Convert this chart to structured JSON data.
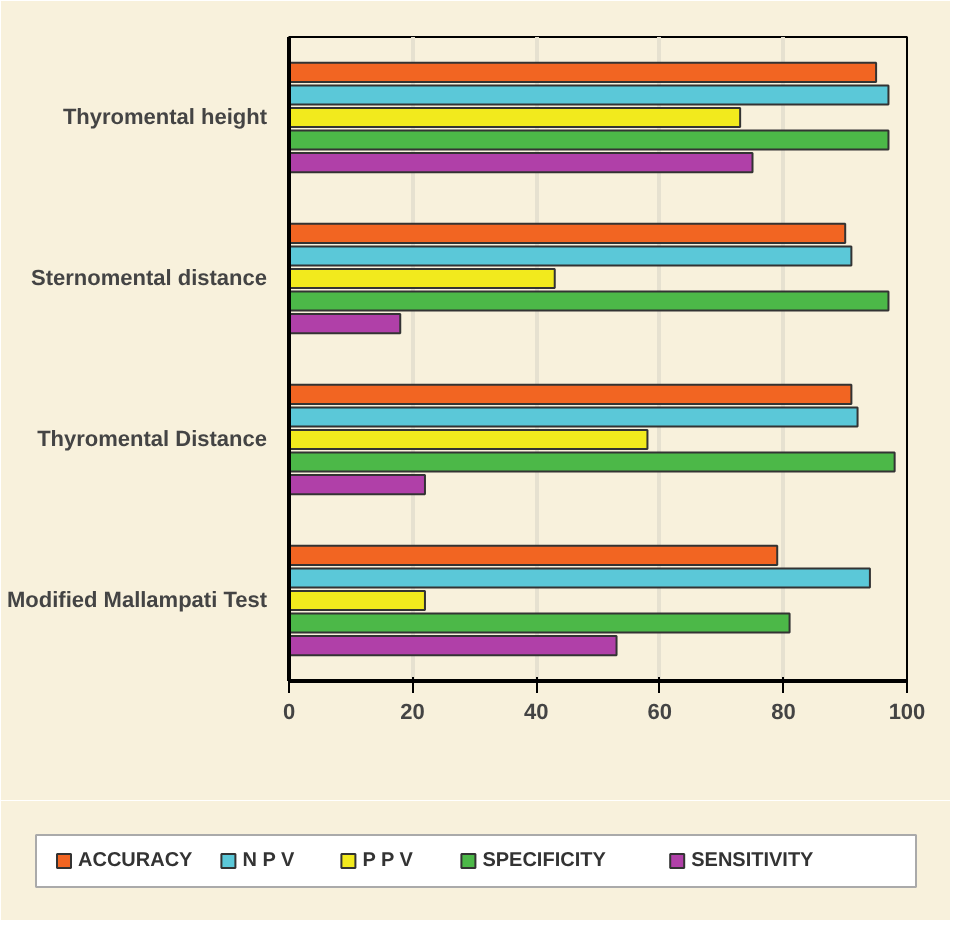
{
  "chart_data": {
    "type": "bar",
    "orientation": "horizontal",
    "categories": [
      "Thyromental height",
      "Sternomental distance",
      "Thyromental Distance",
      "Modified Mallampati Test"
    ],
    "series": [
      {
        "name": "ACCURACY",
        "color": "#f26522",
        "values": [
          95,
          90,
          91,
          79
        ]
      },
      {
        "name": "N P V",
        "color": "#5bc8d8",
        "values": [
          97,
          91,
          92,
          94
        ]
      },
      {
        "name": "P P V",
        "color": "#f2ea1d",
        "values": [
          73,
          43,
          58,
          22
        ]
      },
      {
        "name": "SPECIFICITY",
        "color": "#4cb848",
        "values": [
          97,
          97,
          98,
          81
        ]
      },
      {
        "name": "SENSITIVITY",
        "color": "#b040a8",
        "values": [
          75,
          18,
          22,
          53
        ]
      }
    ],
    "xlim": [
      0,
      100
    ],
    "xticks": [
      0,
      20,
      40,
      60,
      80,
      100
    ],
    "grid": "x",
    "legend": "bottom"
  }
}
